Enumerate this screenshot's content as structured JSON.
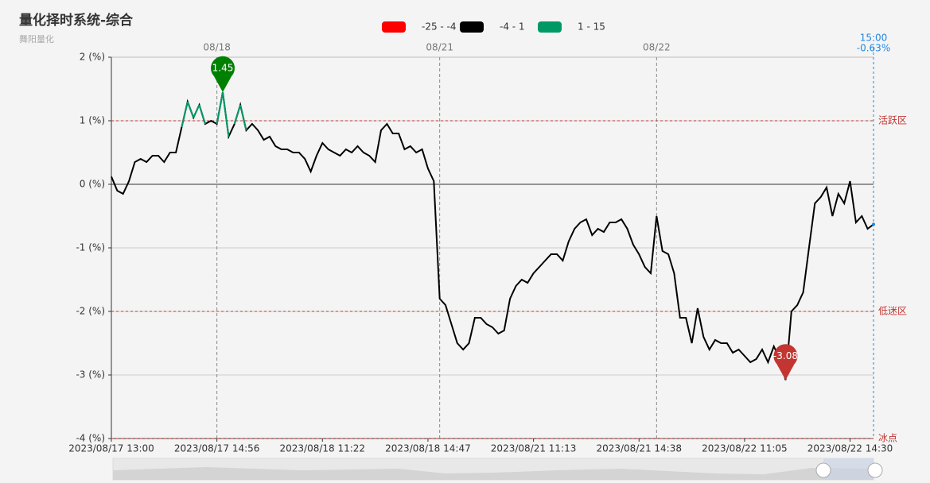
{
  "chart_data": {
    "type": "line",
    "title": "量化择时系统-综合",
    "subtitle": "舞阳量化",
    "pieces": [
      {
        "min": -25,
        "max": -4,
        "label": "-25 - -4",
        "color": "#ff0000"
      },
      {
        "min": -4,
        "max": 1,
        "label": "-4 - 1",
        "color": "#000000"
      },
      {
        "min": 1,
        "max": 15,
        "label": "1 - 15",
        "color": "#009966"
      }
    ],
    "categories": [
      "2023/08/17 13:00",
      null,
      null,
      null,
      null,
      null,
      null,
      null,
      null,
      null,
      null,
      null,
      null,
      null,
      null,
      null,
      null,
      null,
      "2023/08/17 14:56",
      null,
      null,
      null,
      null,
      null,
      null,
      null,
      null,
      null,
      null,
      null,
      null,
      null,
      null,
      null,
      null,
      null,
      "2023/08/18 11:22",
      null,
      null,
      null,
      null,
      null,
      null,
      null,
      null,
      null,
      null,
      null,
      null,
      null,
      null,
      null,
      null,
      null,
      "2023/08/18 14:47",
      null,
      null,
      null,
      null,
      null,
      null,
      null,
      null,
      null,
      null,
      null,
      null,
      null,
      null,
      null,
      null,
      null,
      "2023/08/21 11:13",
      null,
      null,
      null,
      null,
      null,
      null,
      null,
      null,
      null,
      null,
      null,
      null,
      null,
      null,
      null,
      null,
      null,
      "2023/08/21 14:38",
      null,
      null,
      null,
      null,
      null,
      null,
      null,
      null,
      null,
      null,
      null,
      null,
      null,
      null,
      null,
      null,
      null,
      "2023/08/22 11:05",
      null,
      null,
      null,
      null,
      null,
      null,
      null,
      null,
      null,
      null,
      null,
      null,
      null,
      null,
      null,
      null,
      null,
      "2023/08/22 14:30",
      null,
      null,
      null,
      null
    ],
    "values": [
      0.12,
      -0.1,
      -0.15,
      0.05,
      0.35,
      0.4,
      0.35,
      0.45,
      0.45,
      0.35,
      0.5,
      0.5,
      0.9,
      1.3,
      1.05,
      1.25,
      0.95,
      1.0,
      0.95,
      1.45,
      0.75,
      0.95,
      1.25,
      0.85,
      0.95,
      0.85,
      0.7,
      0.75,
      0.6,
      0.55,
      0.55,
      0.5,
      0.5,
      0.4,
      0.2,
      0.45,
      0.65,
      0.55,
      0.5,
      0.45,
      0.55,
      0.5,
      0.6,
      0.5,
      0.45,
      0.35,
      0.85,
      0.95,
      0.8,
      0.8,
      0.55,
      0.6,
      0.5,
      0.55,
      0.25,
      0.05,
      -1.8,
      -1.9,
      -2.2,
      -2.5,
      -2.6,
      -2.5,
      -2.1,
      -2.1,
      -2.2,
      -2.25,
      -2.35,
      -2.3,
      -1.8,
      -1.6,
      -1.5,
      -1.55,
      -1.4,
      -1.3,
      -1.2,
      -1.1,
      -1.1,
      -1.2,
      -0.9,
      -0.7,
      -0.6,
      -0.55,
      -0.8,
      -0.7,
      -0.75,
      -0.6,
      -0.6,
      -0.55,
      -0.7,
      -0.95,
      -1.1,
      -1.3,
      -1.4,
      -0.5,
      -1.05,
      -1.1,
      -1.4,
      -2.1,
      -2.1,
      -2.5,
      -1.95,
      -2.4,
      -2.6,
      -2.45,
      -2.5,
      -2.5,
      -2.65,
      -2.6,
      -2.7,
      -2.8,
      -2.75,
      -2.6,
      -2.8,
      -2.55,
      -2.75,
      -3.08,
      -2.0,
      -1.9,
      -1.7,
      -1.0,
      -0.3,
      -0.2,
      -0.05,
      -0.5,
      -0.15,
      -0.3,
      0.05,
      -0.6,
      -0.5,
      -0.7,
      -0.63
    ],
    "ylim": [
      -4,
      2
    ],
    "yticks": [
      {
        "value": -4,
        "label": "-4 (%)"
      },
      {
        "value": -3,
        "label": "-3 (%)"
      },
      {
        "value": -2,
        "label": "-2 (%)"
      },
      {
        "value": -1,
        "label": "-1 (%)"
      },
      {
        "value": 0,
        "label": "0 (%)"
      },
      {
        "value": 1,
        "label": "1 (%)"
      },
      {
        "value": 2,
        "label": "2 (%)"
      }
    ],
    "grid": true,
    "day_marks": {
      "labels": [
        "08/18",
        "08/21",
        "08/22"
      ],
      "at": [
        18,
        56,
        93
      ]
    },
    "mark_lines": [
      {
        "value": 1,
        "label": "活跃区"
      },
      {
        "value": -2,
        "label": "低迷区"
      },
      {
        "value": -4,
        "label": "冰点"
      }
    ],
    "mark_line_color": "#c23531",
    "mark_points": [
      {
        "index": 19,
        "value": 1.45,
        "color": "#008000"
      },
      {
        "index": 115,
        "value": -3.08,
        "color": "#c23531"
      }
    ],
    "cursor": {
      "time": "15:00",
      "value": -0.63,
      "label": "-0.63%"
    }
  }
}
